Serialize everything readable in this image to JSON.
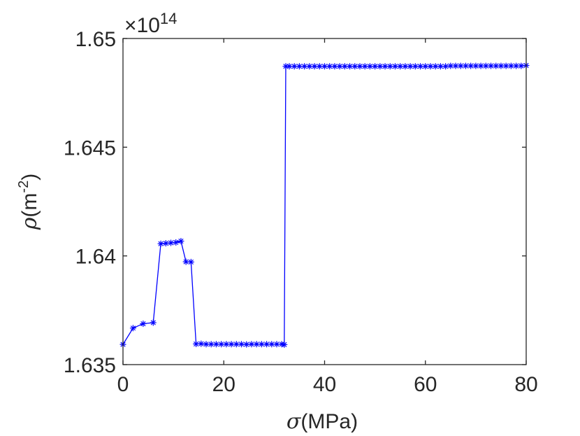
{
  "chart_data": {
    "type": "line",
    "xlabel_symbol": "σ",
    "xlabel_unit": "(MPa)",
    "ylabel_symbol": "ρ",
    "ylabel_unit": "(m",
    "ylabel_unit_sup": "-2",
    "ylabel_unit_close": ")",
    "y_multiplier_base": "×10",
    "y_multiplier_exp": "14",
    "xlim": [
      0,
      80
    ],
    "ylim": [
      1.635,
      1.65
    ],
    "xticks": [
      0,
      20,
      40,
      60,
      80
    ],
    "xtick_labels": [
      "0",
      "20",
      "40",
      "60",
      "80"
    ],
    "yticks": [
      1.635,
      1.64,
      1.645,
      1.65
    ],
    "ytick_labels": [
      "1.635",
      "1.64",
      "1.645",
      "1.65"
    ],
    "grid": false,
    "line_color": "#0000ff",
    "marker": "asterisk",
    "series": [
      {
        "x": [
          0,
          2,
          4,
          6,
          7.5,
          8.5,
          9.5,
          10.5,
          11.5,
          12.5,
          13.5,
          14.5,
          15.5,
          16.5,
          17.5,
          18.5,
          19.5,
          20.5,
          21.5,
          22.5,
          23.5,
          24.5,
          25.5,
          26.5,
          27.5,
          28.5,
          29.5,
          30.5,
          31.5,
          32,
          32.3,
          33,
          34,
          35,
          36,
          37,
          38,
          39,
          40,
          41,
          42,
          43,
          44,
          45,
          46,
          47,
          48,
          49,
          50,
          51,
          52,
          53,
          54,
          55,
          56,
          57,
          58,
          59,
          60,
          61,
          62,
          63,
          64,
          65,
          66,
          67,
          68,
          69,
          70,
          71,
          72,
          73,
          74,
          75,
          76,
          77,
          78,
          79,
          80
        ],
        "values": [
          1.63593,
          1.63668,
          1.63688,
          1.63693,
          1.64056,
          1.64058,
          1.6406,
          1.64062,
          1.64068,
          1.63973,
          1.63972,
          1.63595,
          1.63596,
          1.63594,
          1.63594,
          1.63594,
          1.63594,
          1.63594,
          1.63594,
          1.63594,
          1.63594,
          1.63593,
          1.63594,
          1.63594,
          1.63594,
          1.63594,
          1.63594,
          1.63594,
          1.63594,
          1.63592,
          1.64872,
          1.64872,
          1.64872,
          1.64872,
          1.64872,
          1.64872,
          1.64872,
          1.64872,
          1.64872,
          1.64872,
          1.64872,
          1.64872,
          1.64872,
          1.64872,
          1.64872,
          1.64872,
          1.64872,
          1.64872,
          1.64872,
          1.64872,
          1.64872,
          1.64872,
          1.64872,
          1.64872,
          1.64872,
          1.64872,
          1.64872,
          1.64872,
          1.64872,
          1.64872,
          1.64872,
          1.64872,
          1.64872,
          1.64874,
          1.64874,
          1.64874,
          1.64874,
          1.64874,
          1.64874,
          1.64874,
          1.64874,
          1.64874,
          1.64874,
          1.64874,
          1.64874,
          1.64874,
          1.64874,
          1.64874,
          1.64876
        ]
      }
    ]
  }
}
